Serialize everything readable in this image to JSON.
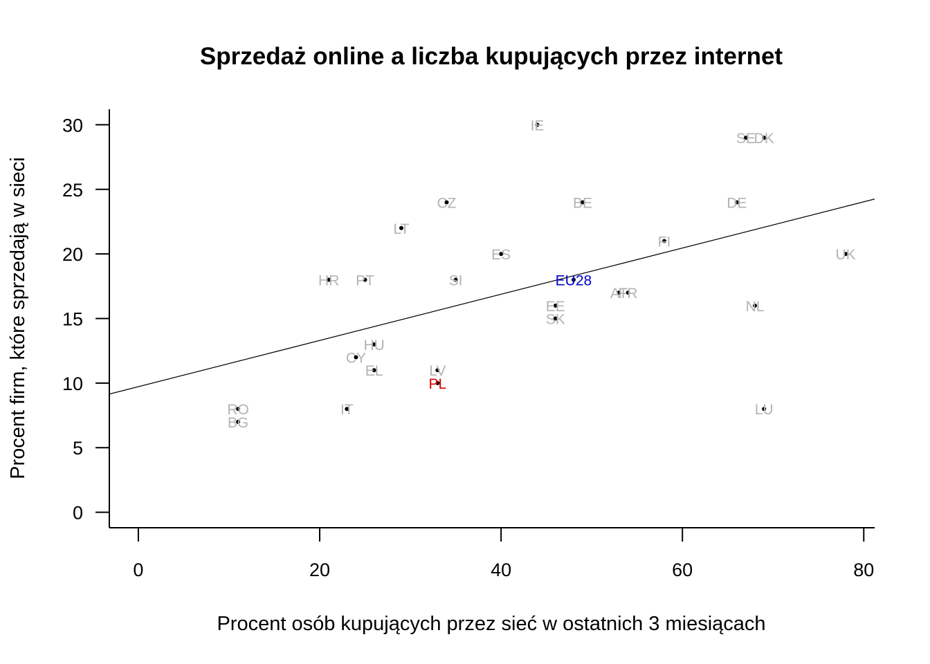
{
  "chart_data": {
    "type": "scatter",
    "title": "Sprzedaż online a liczba kupujących przez internet",
    "xlabel": "Procent osób kupujących przez sieć w ostatnich 3 miesiącach",
    "ylabel": "Procent firm, które sprzedają w sieci",
    "xlim": [
      -3.2,
      81.2
    ],
    "ylim": [
      -1.2,
      31.2
    ],
    "x_ticks": [
      0,
      20,
      40,
      60,
      80
    ],
    "y_ticks": [
      0,
      5,
      10,
      15,
      20,
      25,
      30
    ],
    "grid": false,
    "legend": "none",
    "colors": {
      "default_label": "#b3b3b3",
      "eu_label": "#0000cd",
      "pl_label": "#e00000",
      "point": "#000000",
      "line": "#000000"
    },
    "points": [
      {
        "label": "IE",
        "x": 44,
        "y": 30
      },
      {
        "label": "SE",
        "x": 67,
        "y": 29
      },
      {
        "label": "DK",
        "x": 69,
        "y": 29
      },
      {
        "label": "CZ",
        "x": 34,
        "y": 24
      },
      {
        "label": "BE",
        "x": 49,
        "y": 24
      },
      {
        "label": "DE",
        "x": 66,
        "y": 24
      },
      {
        "label": "LT",
        "x": 29,
        "y": 22
      },
      {
        "label": "FI",
        "x": 58,
        "y": 21
      },
      {
        "label": "ES",
        "x": 40,
        "y": 20
      },
      {
        "label": "UK",
        "x": 78,
        "y": 20
      },
      {
        "label": "HR",
        "x": 21,
        "y": 18
      },
      {
        "label": "PT",
        "x": 25,
        "y": 18
      },
      {
        "label": "SI",
        "x": 35,
        "y": 18
      },
      {
        "label": "EU28",
        "x": 48,
        "y": 18,
        "highlight": "eu"
      },
      {
        "label": "AT",
        "x": 53,
        "y": 17
      },
      {
        "label": "FR",
        "x": 54,
        "y": 17
      },
      {
        "label": "EE",
        "x": 46,
        "y": 16
      },
      {
        "label": "NL",
        "x": 68,
        "y": 16
      },
      {
        "label": "SK",
        "x": 46,
        "y": 15
      },
      {
        "label": "HU",
        "x": 26,
        "y": 13
      },
      {
        "label": "CY",
        "x": 24,
        "y": 12
      },
      {
        "label": "EL",
        "x": 26,
        "y": 11
      },
      {
        "label": "LV",
        "x": 33,
        "y": 11
      },
      {
        "label": "PL",
        "x": 33,
        "y": 10,
        "highlight": "pl"
      },
      {
        "label": "RO",
        "x": 11,
        "y": 8
      },
      {
        "label": "IT",
        "x": 23,
        "y": 8
      },
      {
        "label": "LU",
        "x": 69,
        "y": 8
      },
      {
        "label": "BG",
        "x": 11,
        "y": 7
      }
    ],
    "trendline": {
      "x": [
        -3.2,
        81.2
      ],
      "y": [
        9.15,
        24.25
      ]
    }
  }
}
